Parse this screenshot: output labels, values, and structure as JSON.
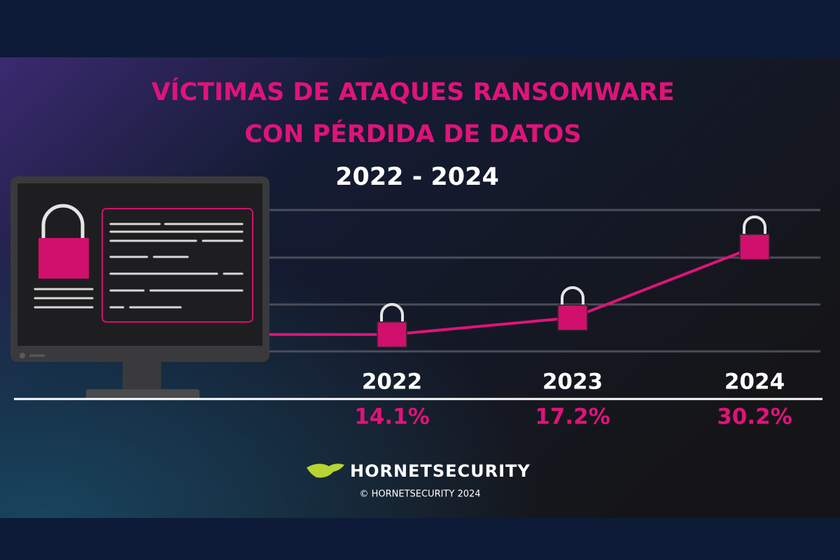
{
  "chart_data": {
    "type": "line",
    "title": [
      "VÍCTIMAS DE ATAQUES RANSOMWARE",
      "CON PÉRDIDA DE DATOS"
    ],
    "subtitle": "2022 - 2024",
    "categories": [
      "2022",
      "2023",
      "2024"
    ],
    "values": [
      14.1,
      17.2,
      30.2
    ],
    "value_labels": [
      "14.1%",
      "17.2%",
      "30.2%"
    ],
    "color": "#e0137a",
    "ylim": [
      11,
      37
    ]
  },
  "footer": {
    "brand": "HORNETSECURITY",
    "copyright": "© HORNETSECURITY 2024"
  }
}
